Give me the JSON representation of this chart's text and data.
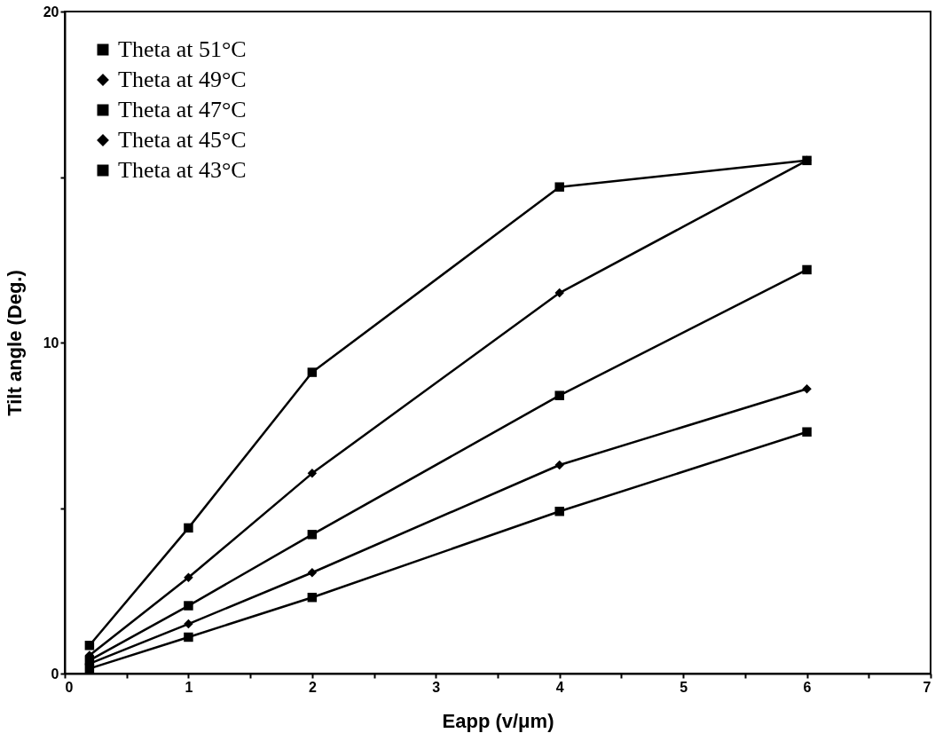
{
  "chart_data": {
    "type": "line",
    "xlabel": "Eapp (v/μm)",
    "ylabel": "Tilt angle (Deg.)",
    "x": [
      0.2,
      1,
      2,
      4,
      6
    ],
    "series": [
      {
        "name": "Theta at 51°C",
        "color": "#000000",
        "marker": "square",
        "values": [
          0.15,
          1.1,
          2.3,
          4.9,
          7.3
        ]
      },
      {
        "name": "Theta at 49°C",
        "color": "#000000",
        "marker": "diamond",
        "values": [
          0.3,
          1.5,
          3.05,
          6.3,
          8.6
        ]
      },
      {
        "name": "Theta at 47°C",
        "color": "#000000",
        "marker": "square",
        "values": [
          0.4,
          2.05,
          4.2,
          8.4,
          12.2
        ]
      },
      {
        "name": "Theta at 45°C",
        "color": "#000000",
        "marker": "diamond",
        "values": [
          0.55,
          2.9,
          6.05,
          11.5,
          15.5
        ]
      },
      {
        "name": "Theta at 43°C",
        "color": "#000000",
        "marker": "square",
        "values": [
          0.85,
          4.4,
          9.1,
          14.7,
          15.5
        ]
      }
    ],
    "xlim": [
      0,
      7
    ],
    "ylim": [
      0,
      20
    ],
    "xticks": [
      0,
      {
        "value": 0.5,
        "label": null
      },
      1,
      {
        "value": 1.5,
        "label": null
      },
      2,
      {
        "value": 2.5,
        "label": null
      },
      3,
      {
        "value": 3.5,
        "label": null
      },
      4,
      {
        "value": 4.5,
        "label": null
      },
      5,
      {
        "value": 5.5,
        "label": null
      },
      6,
      {
        "value": 6.5,
        "label": null
      },
      7
    ],
    "yticks": [
      0,
      {
        "value": 5,
        "label": null
      },
      10,
      {
        "value": 15,
        "label": null
      },
      20
    ],
    "grid": false,
    "legend": "top left",
    "line_style": "solid"
  }
}
